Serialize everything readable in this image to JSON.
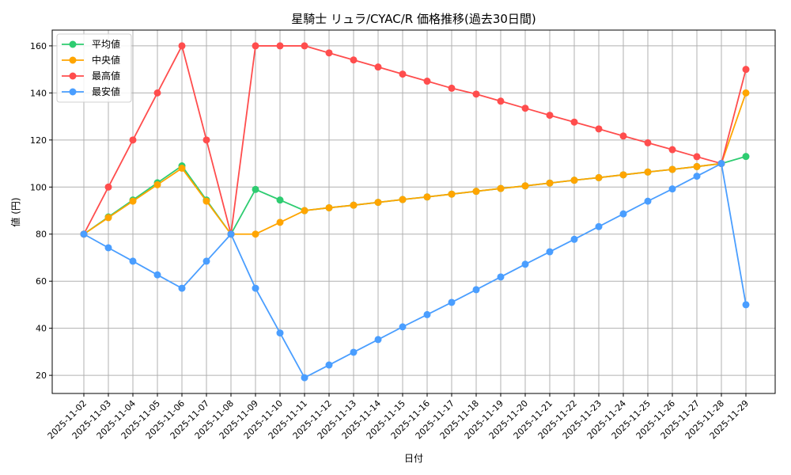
{
  "chart_data": {
    "type": "line",
    "title": "星騎士 リュラ/CYAC/R 価格推移(過去30日間)",
    "xlabel": "日付",
    "ylabel": "値 (円)",
    "ylim": [
      12.3,
      166.7
    ],
    "yticks": [
      20,
      40,
      60,
      80,
      100,
      120,
      140,
      160
    ],
    "grid": true,
    "legend_position": "top-left",
    "x": [
      "2025-11-02",
      "2025-11-03",
      "2025-11-04",
      "2025-11-05",
      "2025-11-06",
      "2025-11-07",
      "2025-11-08",
      "2025-11-09",
      "2025-11-10",
      "2025-11-11",
      "2025-11-12",
      "2025-11-13",
      "2025-11-14",
      "2025-11-15",
      "2025-11-16",
      "2025-11-17",
      "2025-11-18",
      "2025-11-19",
      "2025-11-20",
      "2025-11-21",
      "2025-11-22",
      "2025-11-23",
      "2025-11-24",
      "2025-11-25",
      "2025-11-26",
      "2025-11-27",
      "2025-11-28",
      "2025-11-29"
    ],
    "series": [
      {
        "name": "平均値",
        "color": "#2ecc71",
        "values": [
          80,
          87.3,
          94.5,
          101.8,
          109,
          94.5,
          80,
          99,
          94.5,
          90,
          91.2,
          92.3,
          93.5,
          94.7,
          95.8,
          97,
          98.2,
          99.4,
          100.5,
          101.7,
          102.9,
          104,
          105.2,
          106.4,
          107.5,
          108.7,
          110,
          113
        ]
      },
      {
        "name": "中央値",
        "color": "#ffa500",
        "values": [
          80,
          87,
          94,
          101,
          108,
          94,
          80,
          80,
          85,
          90,
          91.2,
          92.3,
          93.5,
          94.7,
          95.8,
          97,
          98.2,
          99.4,
          100.5,
          101.7,
          102.9,
          104,
          105.2,
          106.4,
          107.5,
          108.7,
          110,
          140
        ]
      },
      {
        "name": "最高値",
        "color": "#ff4d4d",
        "values": [
          80,
          100,
          120,
          140,
          160,
          120,
          80,
          160,
          160,
          160,
          157,
          154,
          151,
          148,
          145,
          142,
          139.5,
          136.5,
          133.5,
          130.5,
          127.6,
          124.7,
          121.7,
          118.8,
          115.9,
          112.9,
          110,
          150
        ]
      },
      {
        "name": "最安値",
        "color": "#4a9eff",
        "values": [
          80,
          74.2,
          68.5,
          62.7,
          57,
          68.5,
          80,
          57,
          38,
          19,
          24.4,
          29.8,
          35.2,
          40.6,
          45.8,
          51,
          56.4,
          61.8,
          67.2,
          72.5,
          77.8,
          83.2,
          88.6,
          94,
          99.2,
          104.6,
          110,
          50
        ]
      }
    ]
  }
}
